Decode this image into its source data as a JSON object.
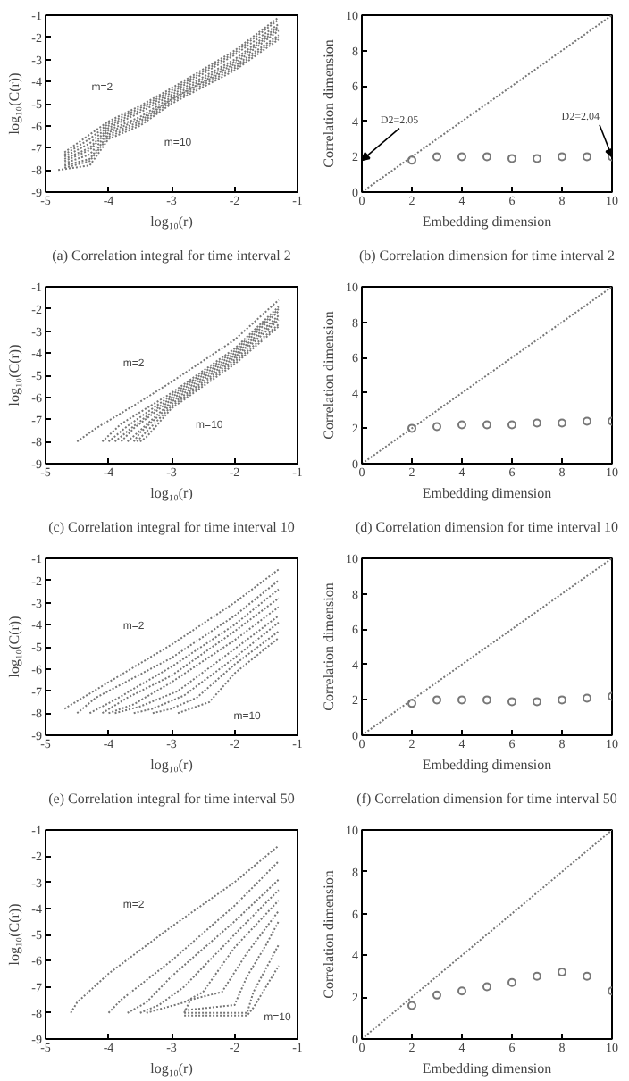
{
  "chart_data": [
    {
      "type": "line",
      "title": "(a) Correlation integral for time interval 2",
      "xlabel": "log₁₀(r)",
      "ylabel": "log₁₀(C(r))",
      "xlim": [
        -5,
        -1
      ],
      "ylim": [
        -9,
        -1
      ],
      "xticks": [
        -5,
        -4,
        -3,
        -2,
        -1
      ],
      "yticks": [
        -9,
        -8,
        -7,
        -6,
        -5,
        -4,
        -3,
        -2,
        -1
      ],
      "grid": false,
      "line_style": "dotted",
      "annotations": [
        "m=2",
        "m=10"
      ],
      "series": [
        {
          "color": "#777777",
          "x": [
            -4.7,
            -4.3,
            -4.0,
            -3.5,
            -3.0,
            -2.0,
            -1.3
          ],
          "values": [
            -7.2,
            -6.4,
            -5.8,
            -5.1,
            -4.3,
            -2.6,
            -1.1
          ]
        },
        {
          "color": "#777777",
          "x": [
            -4.7,
            -4.3,
            -4.0,
            -3.5,
            -3.0,
            -2.0,
            -1.3
          ],
          "values": [
            -7.3,
            -6.6,
            -5.9,
            -5.2,
            -4.4,
            -2.7,
            -1.2
          ]
        },
        {
          "color": "#777777",
          "x": [
            -4.7,
            -4.3,
            -4.0,
            -3.5,
            -3.0,
            -2.0,
            -1.3
          ],
          "values": [
            -7.4,
            -6.8,
            -6.0,
            -5.3,
            -4.5,
            -2.8,
            -1.4
          ]
        },
        {
          "color": "#777777",
          "x": [
            -4.7,
            -4.3,
            -4.0,
            -3.5,
            -3.0,
            -2.0,
            -1.3
          ],
          "values": [
            -7.5,
            -7.0,
            -6.1,
            -5.4,
            -4.6,
            -3.0,
            -1.5
          ]
        },
        {
          "color": "#777777",
          "x": [
            -4.7,
            -4.3,
            -4.0,
            -3.5,
            -3.0,
            -2.0,
            -1.3
          ],
          "values": [
            -7.6,
            -7.1,
            -6.2,
            -5.6,
            -4.7,
            -3.1,
            -1.6
          ]
        },
        {
          "color": "#777777",
          "x": [
            -4.7,
            -4.3,
            -4.0,
            -3.5,
            -3.0,
            -2.0,
            -1.3
          ],
          "values": [
            -7.7,
            -7.3,
            -6.3,
            -5.7,
            -4.8,
            -3.2,
            -1.7
          ]
        },
        {
          "color": "#777777",
          "x": [
            -4.7,
            -4.3,
            -4.0,
            -3.5,
            -3.0,
            -2.0,
            -1.3
          ],
          "values": [
            -7.8,
            -7.5,
            -6.4,
            -5.8,
            -4.8,
            -3.3,
            -1.9
          ]
        },
        {
          "color": "#777777",
          "x": [
            -4.7,
            -4.3,
            -4.0,
            -3.5,
            -3.0,
            -2.0,
            -1.3
          ],
          "values": [
            -7.9,
            -7.6,
            -6.5,
            -5.9,
            -4.9,
            -3.4,
            -2.0
          ]
        },
        {
          "color": "#777777",
          "x": [
            -4.8,
            -4.3,
            -4.0,
            -3.5,
            -3.0,
            -2.0,
            -1.3
          ],
          "values": [
            -8.0,
            -7.8,
            -6.6,
            -6.0,
            -5.0,
            -3.5,
            -2.1
          ]
        }
      ]
    },
    {
      "type": "scatter",
      "title": "(b) Correlation dimension for time interval 2",
      "xlabel": "Embedding dimension",
      "ylabel": "Correlation dimension",
      "xlim": [
        0,
        10
      ],
      "ylim": [
        0,
        10
      ],
      "xticks": [
        0,
        2,
        4,
        6,
        8,
        10
      ],
      "yticks": [
        0,
        2,
        4,
        6,
        8,
        10
      ],
      "grid": false,
      "annotations": [
        "D2=2.05",
        {
          "text": "D2=2.04",
          "x": 10,
          "y": 2.0
        }
      ],
      "series": [
        {
          "type": "line",
          "line_style": "dotted",
          "color": "#777777",
          "x": [
            0,
            10
          ],
          "values": [
            0,
            10
          ]
        },
        {
          "type": "scatter",
          "marker": "circle",
          "color": "#777777",
          "x": [
            2,
            3,
            4,
            5,
            6,
            7,
            8,
            9,
            10
          ],
          "values": [
            1.8,
            2.0,
            2.0,
            2.0,
            1.9,
            1.9,
            2.0,
            2.0,
            2.0
          ]
        }
      ]
    },
    {
      "type": "line",
      "title": "(c) Correlation integral for time interval 10",
      "xlabel": "log₁₀(r)",
      "ylabel": "log₁₀(C(r))",
      "xlim": [
        -5,
        -1
      ],
      "ylim": [
        -9,
        -1
      ],
      "xticks": [
        -5,
        -4,
        -3,
        -2,
        -1
      ],
      "yticks": [
        -9,
        -8,
        -7,
        -6,
        -5,
        -4,
        -3,
        -2,
        -1
      ],
      "grid": false,
      "line_style": "dotted",
      "annotations": [
        "m=2",
        "m=10"
      ],
      "series": [
        {
          "color": "#777777",
          "x": [
            -4.5,
            -4.2,
            -3.5,
            -3.0,
            -2.0,
            -1.3
          ],
          "values": [
            -8.0,
            -7.4,
            -6.2,
            -5.3,
            -3.4,
            -1.6
          ]
        },
        {
          "color": "#777777",
          "x": [
            -4.1,
            -3.8,
            -3.0,
            -2.0,
            -1.3
          ],
          "values": [
            -8.0,
            -7.2,
            -5.8,
            -3.8,
            -1.9
          ]
        },
        {
          "color": "#777777",
          "x": [
            -4.0,
            -3.7,
            -3.0,
            -2.0,
            -1.3
          ],
          "values": [
            -8.0,
            -7.3,
            -5.9,
            -3.9,
            -2.0
          ]
        },
        {
          "color": "#777777",
          "x": [
            -3.9,
            -3.6,
            -3.0,
            -2.0,
            -1.3
          ],
          "values": [
            -8.0,
            -7.3,
            -6.0,
            -4.0,
            -2.1
          ]
        },
        {
          "color": "#777777",
          "x": [
            -3.8,
            -3.6,
            -3.0,
            -2.0,
            -1.3
          ],
          "values": [
            -8.0,
            -7.4,
            -6.1,
            -4.1,
            -2.3
          ]
        },
        {
          "color": "#777777",
          "x": [
            -3.7,
            -3.5,
            -3.0,
            -2.0,
            -1.3
          ],
          "values": [
            -8.0,
            -7.5,
            -6.2,
            -4.2,
            -2.4
          ]
        },
        {
          "color": "#777777",
          "x": [
            -3.6,
            -3.5,
            -3.0,
            -2.0,
            -1.3
          ],
          "values": [
            -8.0,
            -7.6,
            -6.3,
            -4.3,
            -2.5
          ]
        },
        {
          "color": "#777777",
          "x": [
            -3.55,
            -3.45,
            -3.0,
            -2.0,
            -1.3
          ],
          "values": [
            -8.0,
            -7.7,
            -6.4,
            -4.4,
            -2.7
          ]
        },
        {
          "color": "#777777",
          "x": [
            -3.5,
            -3.4,
            -3.0,
            -2.0,
            -1.3
          ],
          "values": [
            -8.0,
            -7.8,
            -6.5,
            -4.5,
            -2.8
          ]
        }
      ]
    },
    {
      "type": "scatter",
      "title": "(d) Correlation dimension for time interval 10",
      "xlabel": "Embedding dimension",
      "ylabel": "Correlation dimension",
      "xlim": [
        0,
        10
      ],
      "ylim": [
        0,
        10
      ],
      "xticks": [
        0,
        2,
        4,
        6,
        8,
        10
      ],
      "yticks": [
        0,
        2,
        4,
        6,
        8,
        10
      ],
      "grid": false,
      "series": [
        {
          "type": "line",
          "line_style": "dotted",
          "color": "#777777",
          "x": [
            0,
            10
          ],
          "values": [
            0,
            10
          ]
        },
        {
          "type": "scatter",
          "marker": "circle",
          "color": "#777777",
          "x": [
            2,
            3,
            4,
            5,
            6,
            7,
            8,
            9,
            10
          ],
          "values": [
            2.0,
            2.1,
            2.2,
            2.2,
            2.2,
            2.3,
            2.3,
            2.4,
            2.4
          ]
        }
      ]
    },
    {
      "type": "line",
      "title": "(e) Correlation integral for time interval 50",
      "xlabel": "log₁₀(r)",
      "ylabel": "log₁₀(C(r))",
      "xlim": [
        -5,
        -1
      ],
      "ylim": [
        -9,
        -1
      ],
      "xticks": [
        -5,
        -4,
        -3,
        -2,
        -1
      ],
      "yticks": [
        -9,
        -8,
        -7,
        -6,
        -5,
        -4,
        -3,
        -2,
        -1
      ],
      "grid": false,
      "line_style": "dotted",
      "annotations": [
        "m=2",
        "m=10"
      ],
      "series": [
        {
          "color": "#777777",
          "x": [
            -4.7,
            -4.0,
            -3.0,
            -2.0,
            -1.3
          ],
          "values": [
            -7.8,
            -6.6,
            -4.9,
            -3.0,
            -1.5
          ]
        },
        {
          "color": "#777777",
          "x": [
            -4.5,
            -4.2,
            -3.0,
            -2.0,
            -1.3
          ],
          "values": [
            -8.0,
            -7.3,
            -5.5,
            -3.6,
            -2.0
          ]
        },
        {
          "color": "#777777",
          "x": [
            -4.3,
            -3.9,
            -3.0,
            -2.0,
            -1.3
          ],
          "values": [
            -8.0,
            -7.4,
            -5.9,
            -4.0,
            -2.4
          ]
        },
        {
          "color": "#777777",
          "x": [
            -4.1,
            -3.7,
            -3.0,
            -2.0,
            -1.3
          ],
          "values": [
            -8.0,
            -7.3,
            -6.3,
            -4.3,
            -2.8
          ]
        },
        {
          "color": "#777777",
          "x": [
            -4.0,
            -3.6,
            -3.0,
            -2.0,
            -1.3
          ],
          "values": [
            -8.0,
            -7.6,
            -6.6,
            -4.7,
            -3.2
          ]
        },
        {
          "color": "#777777",
          "x": [
            -3.9,
            -3.5,
            -2.9,
            -2.0,
            -1.3
          ],
          "values": [
            -8.0,
            -7.7,
            -7.0,
            -5.1,
            -3.6
          ]
        },
        {
          "color": "#777777",
          "x": [
            -3.6,
            -3.3,
            -2.8,
            -2.0,
            -1.3
          ],
          "values": [
            -8.0,
            -7.8,
            -7.2,
            -5.5,
            -3.9
          ]
        },
        {
          "color": "#777777",
          "x": [
            -3.3,
            -3.0,
            -2.6,
            -2.0,
            -1.3
          ],
          "values": [
            -8.0,
            -7.8,
            -7.3,
            -5.8,
            -4.3
          ]
        },
        {
          "color": "#777777",
          "x": [
            -2.9,
            -2.7,
            -2.4,
            -2.0,
            -1.3
          ],
          "values": [
            -8.0,
            -7.8,
            -7.5,
            -6.2,
            -4.6
          ]
        }
      ]
    },
    {
      "type": "scatter",
      "title": "(f) Correlation dimension for time interval 50",
      "xlabel": "Embedding dimension",
      "ylabel": "Correlation dimension",
      "xlim": [
        0,
        10
      ],
      "ylim": [
        0,
        10
      ],
      "xticks": [
        0,
        2,
        4,
        6,
        8,
        10
      ],
      "yticks": [
        0,
        2,
        4,
        6,
        8,
        10
      ],
      "grid": false,
      "series": [
        {
          "type": "line",
          "line_style": "dotted",
          "color": "#777777",
          "x": [
            0,
            10
          ],
          "values": [
            0,
            10
          ]
        },
        {
          "type": "scatter",
          "marker": "circle",
          "color": "#777777",
          "x": [
            2,
            3,
            4,
            5,
            6,
            7,
            8,
            9,
            10
          ],
          "values": [
            1.8,
            2.0,
            2.0,
            2.0,
            1.9,
            1.9,
            2.0,
            2.1,
            2.2
          ]
        }
      ]
    },
    {
      "type": "line",
      "xlabel": "log₁₀(r)",
      "ylabel": "log₁₀(C(r))",
      "xlim": [
        -5,
        -1
      ],
      "ylim": [
        -9,
        -1
      ],
      "xticks": [
        -5,
        -4,
        -3,
        -2,
        -1
      ],
      "yticks": [
        -9,
        -8,
        -7,
        -6,
        -5,
        -4,
        -3,
        -2,
        -1
      ],
      "grid": false,
      "line_style": "dotted",
      "annotations": [
        "m=2",
        "m=10"
      ],
      "series": [
        {
          "color": "#777777",
          "x": [
            -4.6,
            -4.5,
            -4.0,
            -3.0,
            -2.0,
            -1.3
          ],
          "values": [
            -8.0,
            -7.6,
            -6.5,
            -4.7,
            -3.0,
            -1.6
          ]
        },
        {
          "color": "#777777",
          "x": [
            -4.0,
            -3.8,
            -3.0,
            -2.0,
            -1.3
          ],
          "values": [
            -8.0,
            -7.5,
            -6.0,
            -3.9,
            -2.2
          ]
        },
        {
          "color": "#777777",
          "x": [
            -3.7,
            -3.4,
            -3.0,
            -2.0,
            -1.3
          ],
          "values": [
            -8.0,
            -7.6,
            -6.6,
            -4.5,
            -2.9
          ]
        },
        {
          "color": "#777777",
          "x": [
            -3.5,
            -3.2,
            -2.8,
            -2.0,
            -1.3
          ],
          "values": [
            -8.0,
            -7.7,
            -7.0,
            -5.0,
            -3.3
          ]
        },
        {
          "color": "#777777",
          "x": [
            -3.4,
            -2.8,
            -2.5,
            -2.0,
            -1.3
          ],
          "values": [
            -8.0,
            -7.6,
            -7.2,
            -5.5,
            -3.7
          ]
        },
        {
          "color": "#777777",
          "x": [
            -2.8,
            -2.7,
            -2.2,
            -1.8,
            -1.3
          ],
          "values": [
            -8.0,
            -7.5,
            -7.2,
            -5.7,
            -4.1
          ]
        },
        {
          "color": "#777777",
          "x": [
            -2.8,
            -2.0,
            -1.8,
            -1.5,
            -1.3
          ],
          "values": [
            -7.9,
            -7.7,
            -6.6,
            -5.4,
            -4.5
          ]
        },
        {
          "color": "#777777",
          "x": [
            -2.8,
            -1.8,
            -1.7,
            -1.5,
            -1.3
          ],
          "values": [
            -8.0,
            -8.0,
            -7.2,
            -6.3,
            -5.4
          ]
        },
        {
          "color": "#777777",
          "x": [
            -2.8,
            -1.8,
            -1.7,
            -1.5,
            -1.3
          ],
          "values": [
            -8.1,
            -8.1,
            -7.8,
            -7.0,
            -6.2
          ]
        }
      ]
    },
    {
      "type": "scatter",
      "xlabel": "Embedding dimension",
      "ylabel": "Correlation dimension",
      "xlim": [
        0,
        10
      ],
      "ylim": [
        0,
        10
      ],
      "xticks": [
        0,
        2,
        4,
        6,
        8,
        10
      ],
      "yticks": [
        0,
        2,
        4,
        6,
        8,
        10
      ],
      "grid": false,
      "series": [
        {
          "type": "line",
          "line_style": "dotted",
          "color": "#777777",
          "x": [
            0,
            10
          ],
          "values": [
            0,
            10
          ]
        },
        {
          "type": "scatter",
          "marker": "circle",
          "color": "#777777",
          "x": [
            2,
            3,
            4,
            5,
            6,
            7,
            8,
            9,
            10
          ],
          "values": [
            1.6,
            2.1,
            2.3,
            2.5,
            2.7,
            3.0,
            3.2,
            3.0,
            2.3
          ]
        }
      ]
    }
  ]
}
